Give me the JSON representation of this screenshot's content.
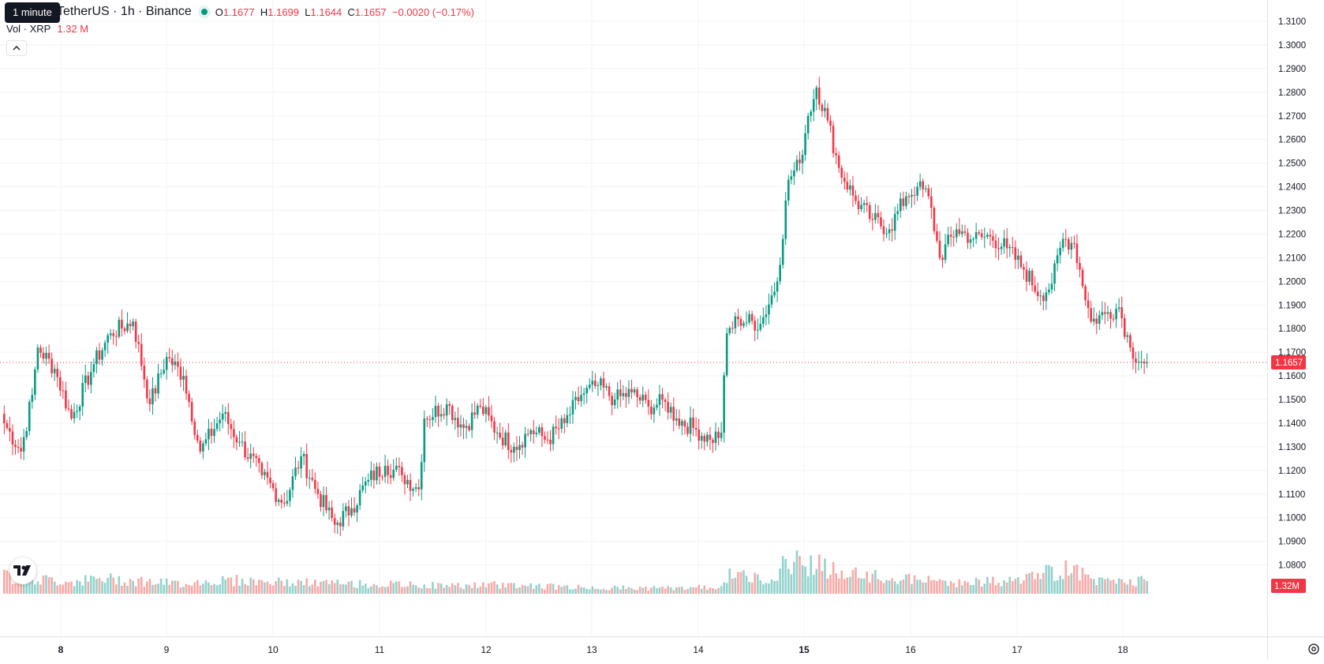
{
  "legend": {
    "symbol_title": "TetherUS · 1h · Binance",
    "open_key": "O",
    "open": "1.1677",
    "high_key": "H",
    "high": "1.1699",
    "low_key": "L",
    "low": "1.1644",
    "close_key": "C",
    "close": "1.1657",
    "change": "−0.0020 (−0.17%)",
    "volume_label": "Vol · XRP",
    "volume_value": "1.32 M"
  },
  "tooltip": {
    "text": "1 minute"
  },
  "icons": {
    "status_dot": "market-status-icon",
    "collapse": "chevron-up-icon",
    "logo": "tradingview-logo-icon",
    "settings": "settings-gear-icon"
  },
  "price_axis": {
    "labels": [
      "1.3100",
      "1.3000",
      "1.2900",
      "1.2800",
      "1.2700",
      "1.2600",
      "1.2500",
      "1.2400",
      "1.2300",
      "1.2200",
      "1.2100",
      "1.2000",
      "1.1900",
      "1.1800",
      "1.1700",
      "1.1600",
      "1.1500",
      "1.1400",
      "1.1300",
      "1.1200",
      "1.1100",
      "1.1000",
      "1.0900",
      "1.0800"
    ],
    "current_price_label": "1.1657",
    "current_volume_label": "1.32M"
  },
  "time_axis": {
    "labels": [
      "8",
      "9",
      "10",
      "11",
      "12",
      "13",
      "14",
      "15",
      "16",
      "17",
      "18"
    ]
  },
  "colors": {
    "up": "#089981",
    "down": "#f23645",
    "up_volume": "#92d2cc",
    "down_volume": "#f7a9a7",
    "grid": "#f0f3fa",
    "axis_text": "#131722"
  },
  "chart_data": {
    "type": "candlestick",
    "interval": "1h",
    "price_range": [
      1.075,
      1.313
    ],
    "current_price": 1.1657,
    "grid": true,
    "x_labels": [
      "8",
      "9",
      "10",
      "11",
      "12",
      "13",
      "14",
      "15",
      "16",
      "17",
      "18"
    ],
    "anchors": [
      [
        0,
        1.14
      ],
      [
        6,
        1.128
      ],
      [
        10,
        1.152
      ],
      [
        12,
        1.172
      ],
      [
        18,
        1.163
      ],
      [
        24,
        1.142
      ],
      [
        32,
        1.165
      ],
      [
        38,
        1.178
      ],
      [
        46,
        1.183
      ],
      [
        52,
        1.148
      ],
      [
        58,
        1.168
      ],
      [
        64,
        1.16
      ],
      [
        70,
        1.128
      ],
      [
        78,
        1.144
      ],
      [
        84,
        1.132
      ],
      [
        92,
        1.118
      ],
      [
        100,
        1.106
      ],
      [
        106,
        1.126
      ],
      [
        112,
        1.11
      ],
      [
        118,
        1.097
      ],
      [
        124,
        1.104
      ],
      [
        130,
        1.116
      ],
      [
        136,
        1.122
      ],
      [
        142,
        1.118
      ],
      [
        148,
        1.112
      ],
      [
        150,
        1.142
      ],
      [
        158,
        1.148
      ],
      [
        164,
        1.138
      ],
      [
        170,
        1.147
      ],
      [
        176,
        1.136
      ],
      [
        182,
        1.13
      ],
      [
        188,
        1.137
      ],
      [
        194,
        1.133
      ],
      [
        200,
        1.14
      ],
      [
        206,
        1.152
      ],
      [
        212,
        1.156
      ],
      [
        218,
        1.15
      ],
      [
        224,
        1.153
      ],
      [
        230,
        1.147
      ],
      [
        236,
        1.149
      ],
      [
        240,
        1.142
      ],
      [
        246,
        1.138
      ],
      [
        252,
        1.133
      ],
      [
        256,
        1.136
      ],
      [
        258,
        1.178
      ],
      [
        262,
        1.184
      ],
      [
        270,
        1.182
      ],
      [
        276,
        1.2
      ],
      [
        280,
        1.243
      ],
      [
        284,
        1.25
      ],
      [
        287,
        1.27
      ],
      [
        290,
        1.282
      ],
      [
        294,
        1.268
      ],
      [
        298,
        1.248
      ],
      [
        304,
        1.234
      ],
      [
        310,
        1.226
      ],
      [
        316,
        1.222
      ],
      [
        322,
        1.236
      ],
      [
        326,
        1.24
      ],
      [
        330,
        1.236
      ],
      [
        334,
        1.21
      ],
      [
        340,
        1.222
      ],
      [
        346,
        1.218
      ],
      [
        352,
        1.219
      ],
      [
        358,
        1.214
      ],
      [
        364,
        1.205
      ],
      [
        370,
        1.194
      ],
      [
        374,
        1.199
      ],
      [
        378,
        1.218
      ],
      [
        382,
        1.216
      ],
      [
        388,
        1.183
      ],
      [
        394,
        1.187
      ],
      [
        398,
        1.189
      ],
      [
        402,
        1.172
      ],
      [
        406,
        1.166
      ],
      [
        408,
        1.1657
      ]
    ],
    "volume_range_million": [
      0,
      7.5
    ],
    "volume_anchors_million": [
      [
        0,
        1.6
      ],
      [
        20,
        1.1
      ],
      [
        40,
        1.3
      ],
      [
        60,
        0.9
      ],
      [
        80,
        1.2
      ],
      [
        100,
        1.0
      ],
      [
        120,
        0.9
      ],
      [
        140,
        0.8
      ],
      [
        160,
        0.7
      ],
      [
        180,
        0.8
      ],
      [
        200,
        0.6
      ],
      [
        220,
        0.5
      ],
      [
        240,
        0.5
      ],
      [
        255,
        0.6
      ],
      [
        260,
        1.8
      ],
      [
        270,
        1.2
      ],
      [
        282,
        3.0
      ],
      [
        290,
        2.6
      ],
      [
        300,
        1.7
      ],
      [
        320,
        1.3
      ],
      [
        340,
        1.0
      ],
      [
        360,
        1.1
      ],
      [
        370,
        1.7
      ],
      [
        380,
        2.2
      ],
      [
        395,
        0.9
      ],
      [
        408,
        1.32
      ]
    ]
  }
}
